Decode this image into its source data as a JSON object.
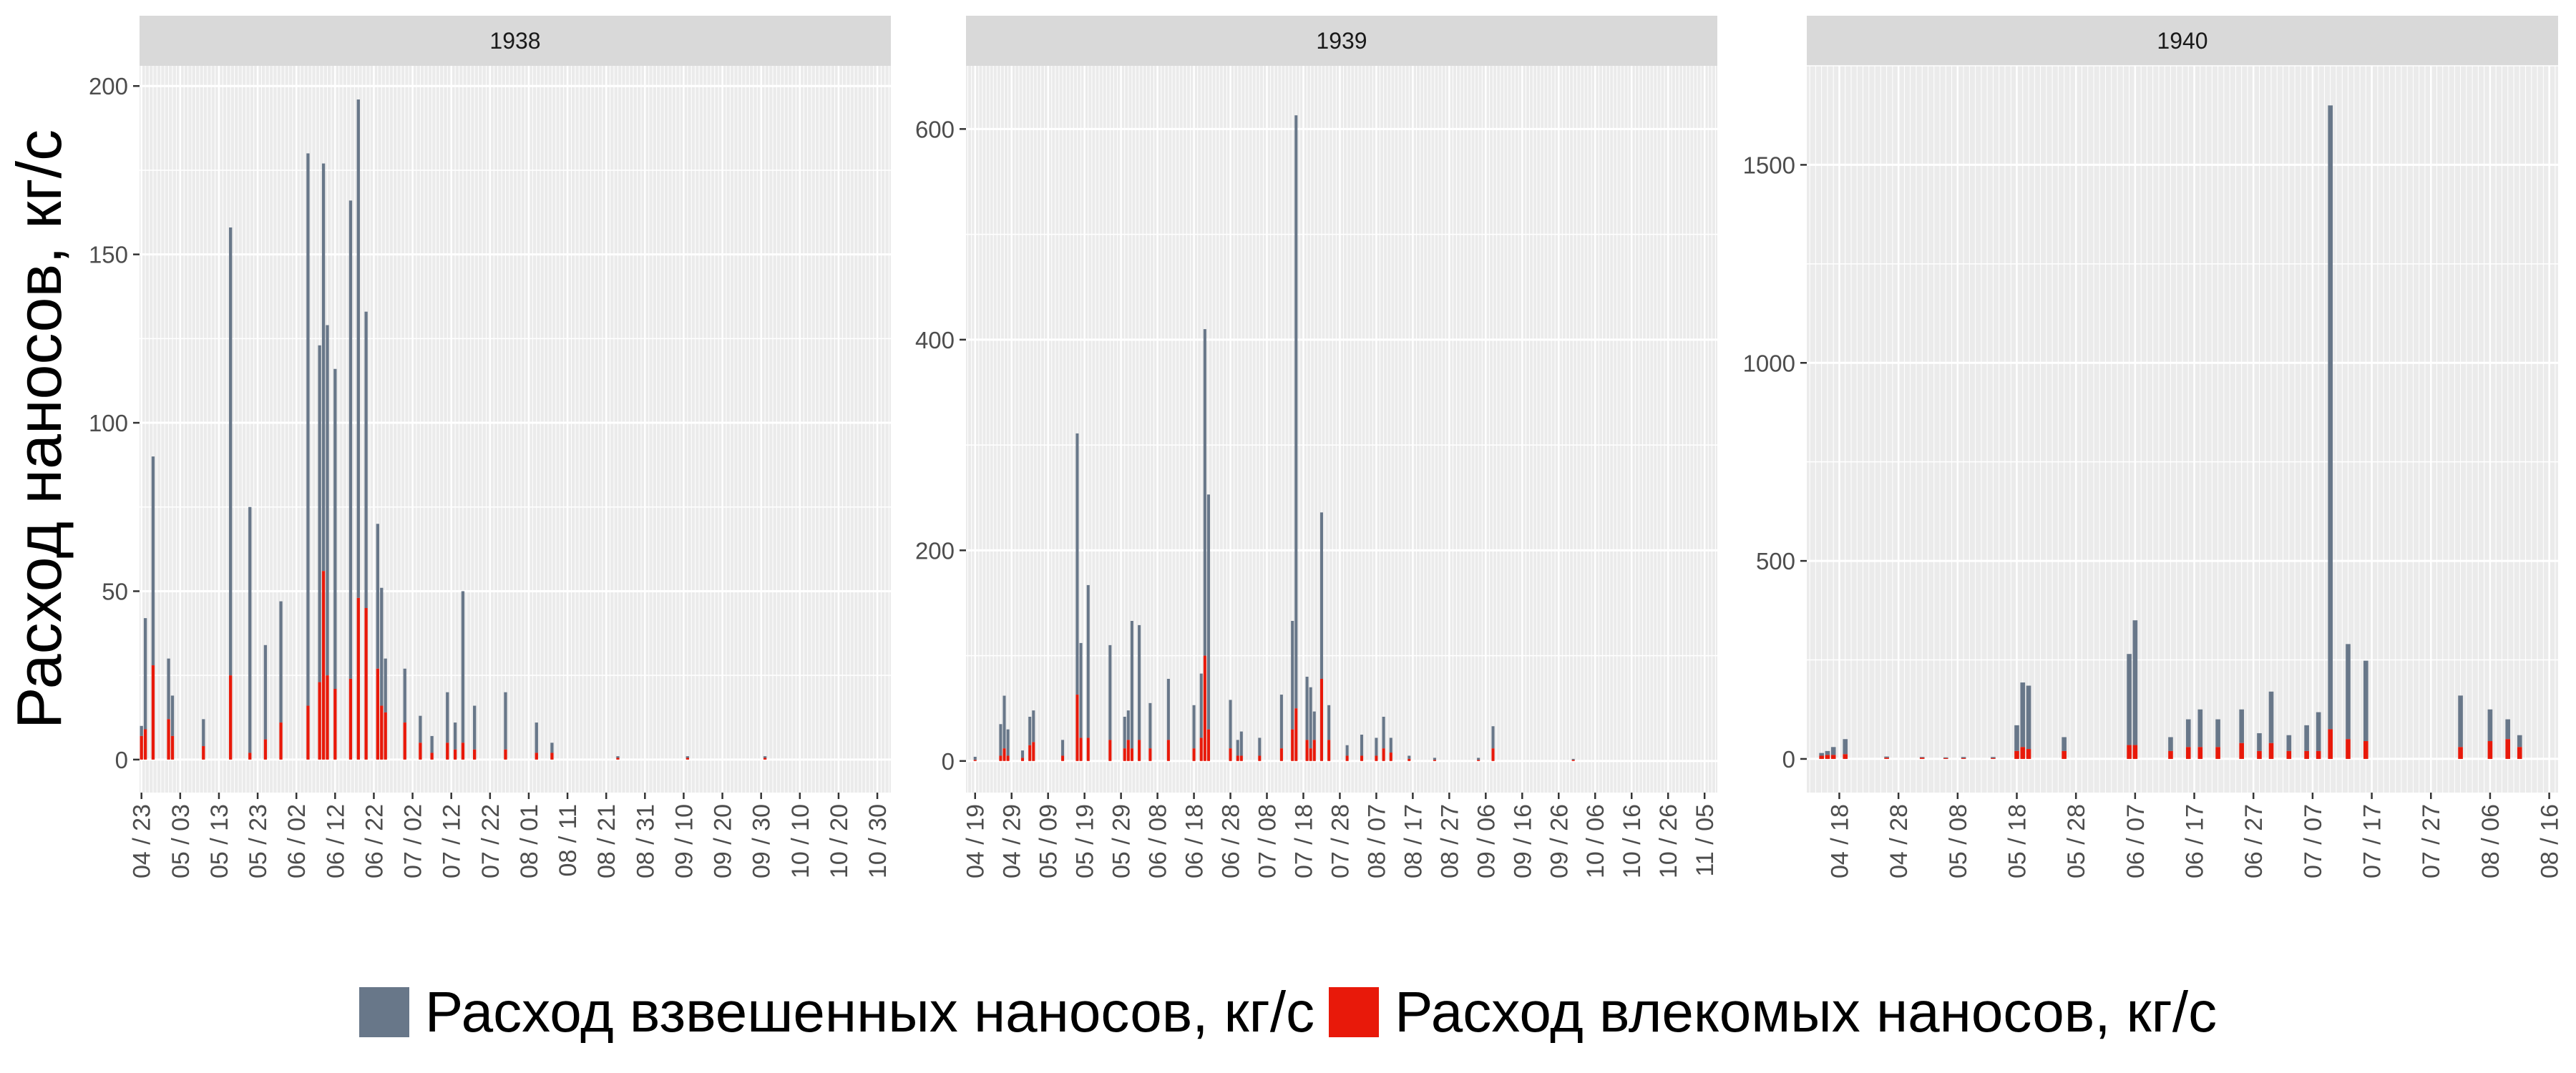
{
  "chart_data": {
    "type": "bar",
    "stacked": true,
    "facet": "year",
    "ylabel": "Расход наносов, кг/с",
    "xlabel": "",
    "grid": true,
    "legend_position": "bottom",
    "series_info": [
      {
        "name": "Расход взвешенных наносов, кг/с",
        "color": "#687789",
        "key": "susp"
      },
      {
        "name": "Расход влекомых наносов, кг/с",
        "color": "#e8190a",
        "key": "bed"
      }
    ],
    "panels": [
      {
        "title": "1938",
        "ylim": [
          -9.8,
          206
        ],
        "yticks": [
          0,
          50,
          100,
          150,
          200
        ],
        "x_start": "04/23",
        "x_end": "11/02",
        "xticks": [
          "04 / 23",
          "05 / 03",
          "05 / 13",
          "05 / 23",
          "06 / 02",
          "06 / 12",
          "06 / 22",
          "07 / 02",
          "07 / 12",
          "07 / 22",
          "08 / 01",
          "08 / 11",
          "08 / 21",
          "08 / 31",
          "09 / 10",
          "09 / 20",
          "09 / 30",
          "10 / 10",
          "10 / 20",
          "10 / 30"
        ],
        "bars": [
          {
            "d": "04/23",
            "susp": 10,
            "bed": 7
          },
          {
            "d": "04/24",
            "susp": 42,
            "bed": 9
          },
          {
            "d": "04/26",
            "susp": 90,
            "bed": 28
          },
          {
            "d": "04/30",
            "susp": 30,
            "bed": 12
          },
          {
            "d": "05/01",
            "susp": 19,
            "bed": 7
          },
          {
            "d": "05/09",
            "susp": 12,
            "bed": 4
          },
          {
            "d": "05/16",
            "susp": 158,
            "bed": 25
          },
          {
            "d": "05/21",
            "susp": 75,
            "bed": 2
          },
          {
            "d": "05/25",
            "susp": 34,
            "bed": 6
          },
          {
            "d": "05/29",
            "susp": 47,
            "bed": 11
          },
          {
            "d": "06/05",
            "susp": 180,
            "bed": 16
          },
          {
            "d": "06/08",
            "susp": 123,
            "bed": 23
          },
          {
            "d": "06/09",
            "susp": 177,
            "bed": 56
          },
          {
            "d": "06/10",
            "susp": 129,
            "bed": 25
          },
          {
            "d": "06/12",
            "susp": 116,
            "bed": 21
          },
          {
            "d": "06/16",
            "susp": 166,
            "bed": 24
          },
          {
            "d": "06/18",
            "susp": 196,
            "bed": 48
          },
          {
            "d": "06/20",
            "susp": 133,
            "bed": 45
          },
          {
            "d": "06/23",
            "susp": 70,
            "bed": 27
          },
          {
            "d": "06/24",
            "susp": 51,
            "bed": 16
          },
          {
            "d": "06/25",
            "susp": 30,
            "bed": 14
          },
          {
            "d": "06/30",
            "susp": 27,
            "bed": 11
          },
          {
            "d": "07/04",
            "susp": 13,
            "bed": 5
          },
          {
            "d": "07/07",
            "susp": 7,
            "bed": 2
          },
          {
            "d": "07/11",
            "susp": 20,
            "bed": 5
          },
          {
            "d": "07/13",
            "susp": 11,
            "bed": 3
          },
          {
            "d": "07/15",
            "susp": 50,
            "bed": 5
          },
          {
            "d": "07/18",
            "susp": 16,
            "bed": 3
          },
          {
            "d": "07/26",
            "susp": 20,
            "bed": 3
          },
          {
            "d": "08/03",
            "susp": 11,
            "bed": 2
          },
          {
            "d": "08/07",
            "susp": 5,
            "bed": 2
          },
          {
            "d": "08/24",
            "susp": 1,
            "bed": 0.5
          },
          {
            "d": "09/11",
            "susp": 1,
            "bed": 0.5
          },
          {
            "d": "10/01",
            "susp": 1,
            "bed": 0.5
          }
        ]
      },
      {
        "title": "1939",
        "ylim": [
          -30,
          660
        ],
        "yticks": [
          0,
          200,
          400,
          600
        ],
        "x_start": "04/17",
        "x_end": "11/08",
        "xticks": [
          "04 / 19",
          "04 / 29",
          "05 / 09",
          "05 / 19",
          "05 / 29",
          "06 / 08",
          "06 / 18",
          "06 / 28",
          "07 / 08",
          "07 / 18",
          "07 / 28",
          "08 / 07",
          "08 / 17",
          "08 / 27",
          "09 / 06",
          "09 / 16",
          "09 / 26",
          "10 / 06",
          "10 / 16",
          "10 / 26",
          "11 / 05"
        ],
        "bars": [
          {
            "d": "04/19",
            "susp": 4,
            "bed": 1
          },
          {
            "d": "04/26",
            "susp": 35,
            "bed": 5
          },
          {
            "d": "04/27",
            "susp": 62,
            "bed": 12
          },
          {
            "d": "04/28",
            "susp": 30,
            "bed": 5
          },
          {
            "d": "05/02",
            "susp": 10,
            "bed": 3
          },
          {
            "d": "05/04",
            "susp": 42,
            "bed": 15
          },
          {
            "d": "05/05",
            "susp": 48,
            "bed": 18
          },
          {
            "d": "05/13",
            "susp": 20,
            "bed": 5
          },
          {
            "d": "05/17",
            "susp": 311,
            "bed": 63
          },
          {
            "d": "05/18",
            "susp": 112,
            "bed": 22
          },
          {
            "d": "05/20",
            "susp": 167,
            "bed": 22
          },
          {
            "d": "05/26",
            "susp": 110,
            "bed": 20
          },
          {
            "d": "05/30",
            "susp": 42,
            "bed": 12
          },
          {
            "d": "05/31",
            "susp": 48,
            "bed": 20
          },
          {
            "d": "06/01",
            "susp": 133,
            "bed": 12
          },
          {
            "d": "06/03",
            "susp": 129,
            "bed": 20
          },
          {
            "d": "06/06",
            "susp": 55,
            "bed": 12
          },
          {
            "d": "06/11",
            "susp": 78,
            "bed": 20
          },
          {
            "d": "06/18",
            "susp": 53,
            "bed": 12
          },
          {
            "d": "06/20",
            "susp": 83,
            "bed": 22
          },
          {
            "d": "06/21",
            "susp": 410,
            "bed": 100
          },
          {
            "d": "06/22",
            "susp": 253,
            "bed": 30
          },
          {
            "d": "06/28",
            "susp": 58,
            "bed": 12
          },
          {
            "d": "06/30",
            "susp": 20,
            "bed": 5
          },
          {
            "d": "07/01",
            "susp": 28,
            "bed": 5
          },
          {
            "d": "07/06",
            "susp": 22,
            "bed": 5
          },
          {
            "d": "07/12",
            "susp": 63,
            "bed": 12
          },
          {
            "d": "07/15",
            "susp": 133,
            "bed": 30
          },
          {
            "d": "07/16",
            "susp": 613,
            "bed": 50
          },
          {
            "d": "07/19",
            "susp": 80,
            "bed": 20
          },
          {
            "d": "07/20",
            "susp": 70,
            "bed": 12
          },
          {
            "d": "07/21",
            "susp": 47,
            "bed": 20
          },
          {
            "d": "07/23",
            "susp": 236,
            "bed": 78
          },
          {
            "d": "07/25",
            "susp": 53,
            "bed": 20
          },
          {
            "d": "07/30",
            "susp": 15,
            "bed": 5
          },
          {
            "d": "08/03",
            "susp": 25,
            "bed": 5
          },
          {
            "d": "08/07",
            "susp": 22,
            "bed": 5
          },
          {
            "d": "08/09",
            "susp": 42,
            "bed": 12
          },
          {
            "d": "08/11",
            "susp": 22,
            "bed": 8
          },
          {
            "d": "08/16",
            "susp": 5,
            "bed": 2
          },
          {
            "d": "08/23",
            "susp": 3,
            "bed": 1
          },
          {
            "d": "09/04",
            "susp": 3,
            "bed": 1
          },
          {
            "d": "09/08",
            "susp": 33,
            "bed": 12
          },
          {
            "d": "09/30",
            "susp": 2,
            "bed": 1
          }
        ]
      },
      {
        "title": "1940",
        "ylim": [
          -85,
          1750
        ],
        "yticks": [
          0,
          500,
          1000,
          1500
        ],
        "x_start": "04/13",
        "x_end": "08/17",
        "xticks": [
          "04 / 18",
          "04 / 28",
          "05 / 08",
          "05 / 18",
          "05 / 28",
          "06 / 07",
          "06 / 17",
          "06 / 27",
          "07 / 07",
          "07 / 17",
          "07 / 27",
          "08 / 06",
          "08 / 16"
        ],
        "bars": [
          {
            "d": "04/15",
            "susp": 15,
            "bed": 8
          },
          {
            "d": "04/16",
            "susp": 20,
            "bed": 10
          },
          {
            "d": "04/17",
            "susp": 30,
            "bed": 10
          },
          {
            "d": "04/19",
            "susp": 50,
            "bed": 12
          },
          {
            "d": "04/26",
            "susp": 6,
            "bed": 3
          },
          {
            "d": "05/02",
            "susp": 5,
            "bed": 3
          },
          {
            "d": "05/06",
            "susp": 4,
            "bed": 2
          },
          {
            "d": "05/09",
            "susp": 5,
            "bed": 2
          },
          {
            "d": "05/14",
            "susp": 5,
            "bed": 2
          },
          {
            "d": "05/18",
            "susp": 85,
            "bed": 20
          },
          {
            "d": "05/19",
            "susp": 193,
            "bed": 30
          },
          {
            "d": "05/20",
            "susp": 185,
            "bed": 25
          },
          {
            "d": "05/26",
            "susp": 55,
            "bed": 20
          },
          {
            "d": "06/06",
            "susp": 265,
            "bed": 35
          },
          {
            "d": "06/07",
            "susp": 350,
            "bed": 35
          },
          {
            "d": "06/13",
            "susp": 55,
            "bed": 20
          },
          {
            "d": "06/16",
            "susp": 100,
            "bed": 30
          },
          {
            "d": "06/18",
            "susp": 125,
            "bed": 30
          },
          {
            "d": "06/21",
            "susp": 100,
            "bed": 30
          },
          {
            "d": "06/25",
            "susp": 125,
            "bed": 40
          },
          {
            "d": "06/28",
            "susp": 65,
            "bed": 20
          },
          {
            "d": "06/30",
            "susp": 170,
            "bed": 40
          },
          {
            "d": "07/03",
            "susp": 60,
            "bed": 20
          },
          {
            "d": "07/06",
            "susp": 85,
            "bed": 20
          },
          {
            "d": "07/08",
            "susp": 118,
            "bed": 20
          },
          {
            "d": "07/10",
            "susp": 1650,
            "bed": 75
          },
          {
            "d": "07/13",
            "susp": 290,
            "bed": 50
          },
          {
            "d": "07/16",
            "susp": 248,
            "bed": 45
          },
          {
            "d": "08/01",
            "susp": 160,
            "bed": 30
          },
          {
            "d": "08/06",
            "susp": 125,
            "bed": 45
          },
          {
            "d": "08/09",
            "susp": 100,
            "bed": 50
          },
          {
            "d": "08/11",
            "susp": 60,
            "bed": 30
          }
        ]
      }
    ]
  }
}
